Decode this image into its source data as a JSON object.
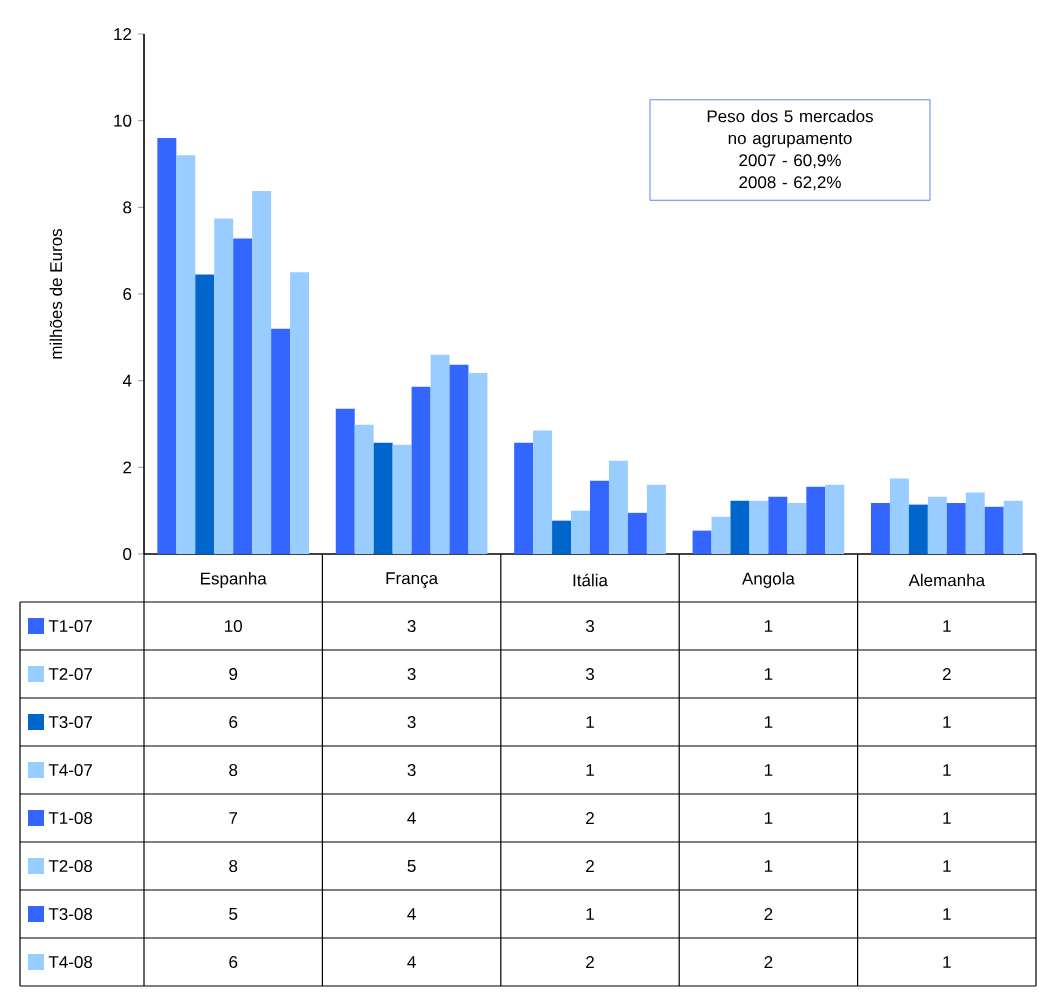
{
  "chart_data": {
    "type": "bar",
    "ylabel": "milhões de Euros",
    "categories": [
      "Espanha",
      "França",
      "Itália",
      "Angola",
      "Alemanha"
    ],
    "series": [
      {
        "name": "T1-07",
        "color": "#3366ff",
        "values": [
          9.6,
          3.35,
          2.57,
          0.54,
          1.18
        ],
        "value_labels": [
          "10",
          "3",
          "3",
          "1",
          "1"
        ]
      },
      {
        "name": "T2-07",
        "color": "#99ccff",
        "values": [
          9.2,
          2.98,
          2.85,
          0.86,
          1.74
        ],
        "value_labels": [
          "9",
          "3",
          "3",
          "1",
          "2"
        ]
      },
      {
        "name": "T3-07",
        "color": "#0066cc",
        "values": [
          6.45,
          2.57,
          0.77,
          1.23,
          1.14
        ],
        "value_labels": [
          "6",
          "3",
          "1",
          "1",
          "1"
        ]
      },
      {
        "name": "T4-07",
        "color": "#99ccff",
        "values": [
          7.74,
          2.52,
          1.0,
          1.23,
          1.32
        ],
        "value_labels": [
          "8",
          "3",
          "1",
          "1",
          "1"
        ]
      },
      {
        "name": "T1-08",
        "color": "#3366ff",
        "values": [
          7.28,
          3.86,
          1.69,
          1.32,
          1.18
        ],
        "value_labels": [
          "7",
          "4",
          "2",
          "1",
          "1"
        ]
      },
      {
        "name": "T2-08",
        "color": "#99ccff",
        "values": [
          8.38,
          4.6,
          2.15,
          1.18,
          1.42
        ],
        "value_labels": [
          "8",
          "5",
          "2",
          "1",
          "1"
        ]
      },
      {
        "name": "T3-08",
        "color": "#3366ff",
        "values": [
          5.2,
          4.37,
          0.95,
          1.55,
          1.09
        ],
        "value_labels": [
          "5",
          "4",
          "1",
          "2",
          "1"
        ]
      },
      {
        "name": "T4-08",
        "color": "#99ccff",
        "values": [
          6.5,
          4.18,
          1.6,
          1.6,
          1.23
        ],
        "value_labels": [
          "6",
          "4",
          "2",
          "2",
          "1"
        ]
      }
    ],
    "ylim": [
      0,
      12
    ],
    "yticks": [
      0,
      2,
      4,
      6,
      8,
      10,
      12
    ],
    "annotations": [
      "Peso dos 5 mercados no agrupamento",
      "2007 - 60,9%",
      "2008 - 62,2%"
    ],
    "legend": "bottom"
  }
}
